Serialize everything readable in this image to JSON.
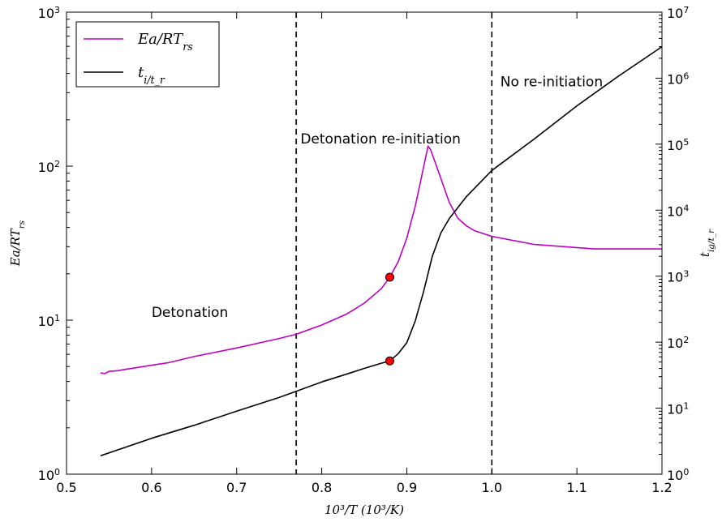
{
  "chart_data": {
    "type": "line",
    "title": "",
    "xlabel": "10³/T (10³/K)",
    "ylabel_left": "Ea/RT_rs",
    "ylabel_right": "t_ig/t_r",
    "xlim": [
      0.5,
      1.2
    ],
    "ylim_left": [
      1,
      1000
    ],
    "ylim_right": [
      1,
      10000000
    ],
    "y_scale": "log",
    "grid": false,
    "legend_position": "top-left",
    "x_ticks": [
      "0.5",
      "0.6",
      "0.7",
      "0.8",
      "0.9",
      "1.0",
      "1.1",
      "1.2"
    ],
    "y_left_ticks": [
      {
        "base": "10",
        "exp": "0",
        "value": 1
      },
      {
        "base": "10",
        "exp": "1",
        "value": 10
      },
      {
        "base": "10",
        "exp": "2",
        "value": 100
      },
      {
        "base": "10",
        "exp": "3",
        "value": 1000
      }
    ],
    "y_right_ticks": [
      {
        "base": "10",
        "exp": "0",
        "value": 1
      },
      {
        "base": "10",
        "exp": "1",
        "value": 10
      },
      {
        "base": "10",
        "exp": "2",
        "value": 100
      },
      {
        "base": "10",
        "exp": "3",
        "value": 1000
      },
      {
        "base": "10",
        "exp": "4",
        "value": 10000
      },
      {
        "base": "10",
        "exp": "5",
        "value": 100000
      },
      {
        "base": "10",
        "exp": "6",
        "value": 1000000
      },
      {
        "base": "10",
        "exp": "7",
        "value": 10000000
      }
    ],
    "series": [
      {
        "name": "Ea/RT_rs",
        "axis": "left",
        "color": "#bf00bf",
        "x": [
          0.54,
          0.545,
          0.55,
          0.56,
          0.57,
          0.58,
          0.6,
          0.62,
          0.65,
          0.7,
          0.75,
          0.77,
          0.8,
          0.83,
          0.85,
          0.87,
          0.88,
          0.89,
          0.9,
          0.91,
          0.92,
          0.925,
          0.928,
          0.935,
          0.95,
          0.96,
          0.97,
          0.98,
          1.0,
          1.05,
          1.12,
          1.2
        ],
        "y": [
          4.55,
          4.5,
          4.65,
          4.7,
          4.8,
          4.9,
          5.1,
          5.3,
          5.8,
          6.6,
          7.6,
          8.1,
          9.3,
          11.0,
          12.9,
          16.0,
          19.0,
          24.0,
          34.0,
          55.0,
          100.0,
          135.0,
          128.0,
          100.0,
          58.0,
          46.0,
          41.0,
          38.0,
          35.0,
          31.0,
          29.0,
          29.0
        ]
      },
      {
        "name": "t_i/t_r",
        "axis": "right",
        "color": "#000000",
        "x": [
          0.54,
          0.6,
          0.65,
          0.7,
          0.75,
          0.77,
          0.8,
          0.83,
          0.85,
          0.87,
          0.88,
          0.89,
          0.9,
          0.91,
          0.92,
          0.93,
          0.94,
          0.95,
          0.97,
          1.0,
          1.05,
          1.1,
          1.15,
          1.2
        ],
        "y": [
          1.9,
          3.5,
          5.5,
          9.0,
          14.5,
          18.0,
          25.0,
          33.0,
          40.0,
          48.0,
          52.0,
          67.0,
          98.0,
          210.0,
          600.0,
          2000.0,
          4500.0,
          7500.0,
          16000.0,
          40000.0,
          120000.0,
          380000.0,
          1100000.0,
          3000000.0
        ]
      }
    ],
    "markers": [
      {
        "series": "Ea/RT_rs",
        "x": 0.88,
        "y": 19.0,
        "color": "#ff0000"
      },
      {
        "series": "t_i/t_r",
        "x": 0.88,
        "y": 52.0,
        "color": "#ff0000"
      }
    ],
    "vlines": [
      0.77,
      1.0
    ],
    "annotations": [
      {
        "text": "Detonation",
        "x": 0.6,
        "y": 10.5
      },
      {
        "text": "Detonation re-initiation",
        "x": 0.775,
        "y": 140
      },
      {
        "text": "No re-initiation",
        "x": 1.01,
        "y": 330
      }
    ]
  }
}
